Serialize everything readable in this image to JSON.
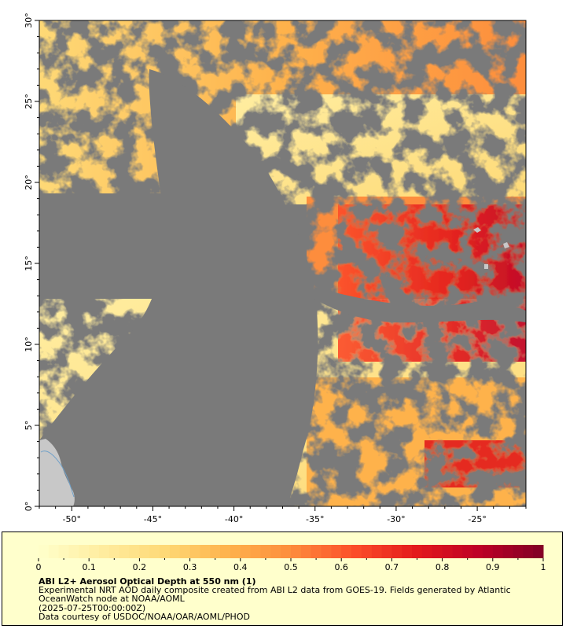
{
  "map": {
    "lat_ticks": [
      "0°",
      "5°",
      "10°",
      "15°",
      "20°",
      "25°",
      "30°"
    ],
    "lon_ticks": [
      "-50°",
      "-45°",
      "-40°",
      "-35°",
      "-30°",
      "-25°"
    ],
    "lat_range": [
      0,
      30
    ],
    "lon_range": [
      -52,
      -22
    ],
    "colors": {
      "no_data": "#7a7a7a",
      "land": "#c8c8c8",
      "coast": "#6fa0c8"
    }
  },
  "legend": {
    "ticks": [
      "0",
      "0.1",
      "0.2",
      "0.3",
      "0.4",
      "0.5",
      "0.6",
      "0.7",
      "0.8",
      "0.9",
      "1"
    ],
    "range": [
      0,
      1
    ],
    "title": "ABI L2+ Aerosol Optical Depth at 550 nm (1)",
    "description": "Experimental NRT AOD daily composite created from ABI L2 data from GOES-19. Fields generated by Atlantic OceanWatch node at NOAA/AOML",
    "date": "(2025-07-25T00:00:00Z)",
    "credit": "Data courtesy of USDOC/NOAA/OAR/AOML/PHOD",
    "colors": [
      "#ffffcc",
      "#ffeda0",
      "#fed976",
      "#feb24c",
      "#fd8d3c",
      "#fc4e2a",
      "#e31a1c",
      "#bd0026",
      "#800026"
    ]
  }
}
